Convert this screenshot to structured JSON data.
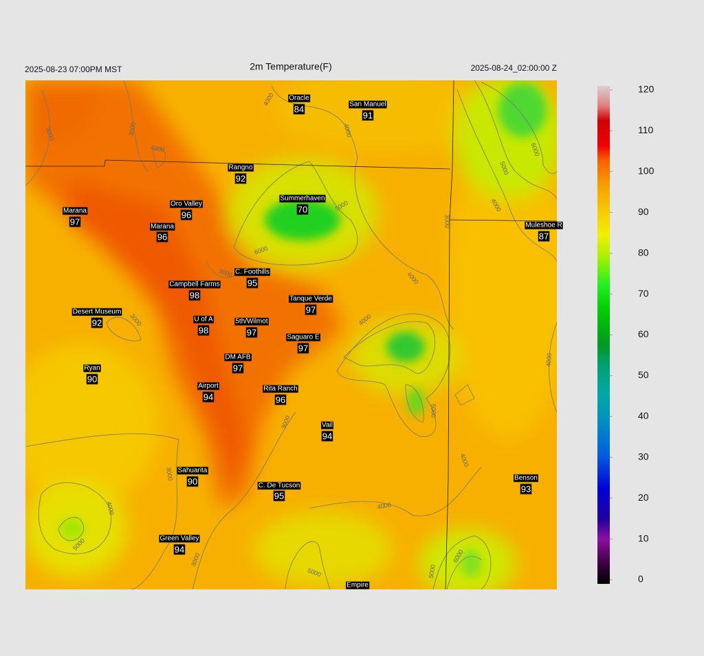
{
  "header": {
    "left": "2025-08-23 07:00PM MST",
    "title": "2m Temperature(F)",
    "right": "2025-08-24_02:00:00 Z"
  },
  "stations": [
    {
      "name": "Oracle",
      "value": 84
    },
    {
      "name": "San Manuel",
      "value": 91
    },
    {
      "name": "Rangno",
      "value": 92
    },
    {
      "name": "Summerhaven",
      "value": 70
    },
    {
      "name": "Marana",
      "value": 97
    },
    {
      "name": "Oro Valley",
      "value": 96
    },
    {
      "name": "Marana",
      "value": 96
    },
    {
      "name": "Muleshoe R",
      "value": 87
    },
    {
      "name": "C. Foothills",
      "value": 95
    },
    {
      "name": "Campbell Farms",
      "value": 98
    },
    {
      "name": "Tanque Verde",
      "value": 97
    },
    {
      "name": "Desert Museum",
      "value": 92
    },
    {
      "name": "U of A",
      "value": 98
    },
    {
      "name": "5th/Wilmot",
      "value": 97
    },
    {
      "name": "Saguaro E",
      "value": 97
    },
    {
      "name": "DM AFB",
      "value": 97
    },
    {
      "name": "Ryan",
      "value": 90
    },
    {
      "name": "Airport",
      "value": 94
    },
    {
      "name": "Rita Ranch",
      "value": 96
    },
    {
      "name": "Vail",
      "value": 94
    },
    {
      "name": "Sahuarita",
      "value": 90
    },
    {
      "name": "Benson",
      "value": 93
    },
    {
      "name": "C. De Tucson",
      "value": 95
    },
    {
      "name": "Green Valley",
      "value": 94
    },
    {
      "name": "Empire"
    }
  ],
  "colorbar": {
    "ticks": [
      0,
      10,
      20,
      30,
      40,
      50,
      60,
      70,
      80,
      90,
      100,
      110,
      120
    ]
  },
  "contour_labels": [
    3000,
    3000,
    4000,
    4000,
    4000,
    5000,
    6000,
    3000,
    3000,
    4000,
    4000,
    5000,
    3000,
    3000,
    4000,
    5000,
    3000,
    4000,
    5000,
    5000,
    6000,
    4000,
    4000,
    3000,
    4000,
    5000,
    6000
  ]
}
